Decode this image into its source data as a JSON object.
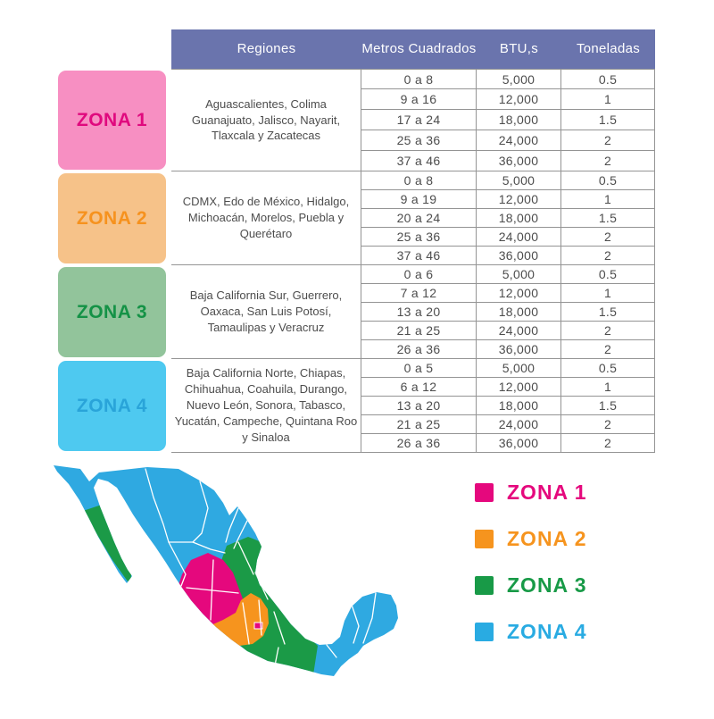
{
  "table": {
    "headers": [
      "Regiones",
      "Metros Cuadrados",
      "BTU,s",
      "Toneladas"
    ],
    "header_bg": "#6A74AD",
    "border_color": "#949494",
    "sections": [
      {
        "zone": "ZONA 1",
        "zone_bg": "#F78FC2",
        "zone_color": "#E0097E",
        "regions": "Aguascalientes, Colima Guanajuato, Jalisco, Nayarit, Tlaxcala y Zacatecas",
        "rows": [
          [
            "0 a 8",
            "5,000",
            "0.5"
          ],
          [
            "9 a 16",
            "12,000",
            "1"
          ],
          [
            "17 a 24",
            "18,000",
            "1.5"
          ],
          [
            "25 a 36",
            "24,000",
            "2"
          ],
          [
            "37 a 46",
            "36,000",
            "2"
          ]
        ]
      },
      {
        "zone": "ZONA 2",
        "zone_bg": "#F6C289",
        "zone_color": "#F6921E",
        "regions": "CDMX, Edo de México, Hidalgo, Michoacán, Morelos, Puebla y Querétaro",
        "rows": [
          [
            "0 a 8",
            "5,000",
            "0.5"
          ],
          [
            "9 a 19",
            "12,000",
            "1"
          ],
          [
            "20 a 24",
            "18,000",
            "1.5"
          ],
          [
            "25 a 36",
            "24,000",
            "2"
          ],
          [
            "37 a 46",
            "36,000",
            "2"
          ]
        ]
      },
      {
        "zone": "ZONA 3",
        "zone_bg": "#92C49B",
        "zone_color": "#149246",
        "regions": "Baja California Sur, Guerrero, Oaxaca, San Luis Potosí, Tamaulipas y Veracruz",
        "rows": [
          [
            "0 a 6",
            "5,000",
            "0.5"
          ],
          [
            "7 a 12",
            "12,000",
            "1"
          ],
          [
            "13 a 20",
            "18,000",
            "1.5"
          ],
          [
            "21 a 25",
            "24,000",
            "2"
          ],
          [
            "26 a 36",
            "36,000",
            "2"
          ]
        ]
      },
      {
        "zone": "ZONA 4",
        "zone_bg": "#4EC9F0",
        "zone_color": "#29A4D9",
        "regions": "Baja California Norte, Chiapas, Chihuahua, Coahuila, Durango, Nuevo León, Sonora, Tabasco, Yucatán, Campeche, Quintana Roo y Sinaloa",
        "rows": [
          [
            "0 a 5",
            "5,000",
            "0.5"
          ],
          [
            "6 a 12",
            "12,000",
            "1"
          ],
          [
            "13 a 20",
            "18,000",
            "1.5"
          ],
          [
            "21 a 25",
            "24,000",
            "2"
          ],
          [
            "26 a 36",
            "36,000",
            "2"
          ]
        ]
      }
    ]
  },
  "legend": {
    "items": [
      {
        "label": "ZONA 1",
        "color": "#E5087D"
      },
      {
        "label": "ZONA 2",
        "color": "#F6941E"
      },
      {
        "label": "ZONA 3",
        "color": "#189A47"
      },
      {
        "label": "ZONA 4",
        "color": "#29ABE2"
      }
    ]
  },
  "map": {
    "name": "mexico-zones-map",
    "colors": {
      "zona1": "#E5087D",
      "zona2": "#F6941E",
      "zona3": "#1B9A47",
      "zona4": "#2FA9E1",
      "state_border": "#FFFFFF"
    }
  }
}
